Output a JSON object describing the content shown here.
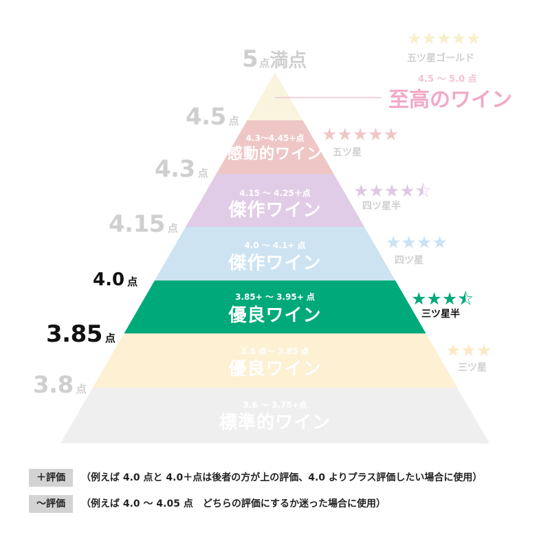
{
  "top": {
    "score_num": "5",
    "score_unit": "点",
    "score_tail": "満点",
    "stars": "★★★★★",
    "stars_label": "五ツ星ゴールド",
    "range": "4.5 ～ 5.0 点",
    "name": "至高のワイン"
  },
  "scores": [
    {
      "num": "4.5",
      "unit": "点"
    },
    {
      "num": "4.3",
      "unit": "点"
    },
    {
      "num": "4.15",
      "unit": "点"
    },
    {
      "num": "4.0",
      "unit": "点"
    },
    {
      "num": "3.85",
      "unit": "点"
    },
    {
      "num": "3.8",
      "unit": "点"
    }
  ],
  "tiers": [
    {
      "range": "4.3～4.45+点",
      "name": "感動的ワイン",
      "color": "#efc6c6",
      "stars": "★★★★★",
      "stars_label": "五ツ星",
      "star_color": "#efc6c6"
    },
    {
      "range": "4.15 ～ 4.25＋点",
      "name": "傑作ワイン",
      "color": "#e1cce7",
      "stars": "★★★★⯪",
      "stars_label": "四ツ星半",
      "star_color": "#ddc8e6"
    },
    {
      "range": "4.0 ～ 4.1+ 点",
      "name": "傑作ワイン",
      "color": "#cde3f2",
      "stars": "★★★★",
      "stars_label": "四ツ星",
      "star_color": "#cae2f3"
    },
    {
      "range": "3.85+ ～ 3.95+ 点",
      "name": "優良ワイン",
      "color": "#00a97a",
      "stars": "★★★⯪",
      "stars_label": "三ツ星半",
      "star_color": "#00a97a"
    },
    {
      "range": "3.8 点～ 3.85 点",
      "name": "優良ワイン",
      "color": "#fdf0d3",
      "stars": "★★★",
      "stars_label": "三ツ星",
      "star_color": "#fbe9c4"
    },
    {
      "range": "3.6 ～ 3.75+点",
      "name": "標準的ワイン",
      "color": "#efefef",
      "stars": "",
      "stars_label": "",
      "star_color": "#efefef"
    }
  ],
  "colors": {
    "apex": "#faf4df",
    "top_range": "#f3c2d6",
    "top_name": "#f2a8c8",
    "top_stars": "#f7efc8",
    "muted": "#cfcfcf",
    "dark": "#111111"
  },
  "legend": [
    {
      "tag": "＋評価",
      "text": "（例えば 4.0 点と 4.0＋点は後者の方が上の評価、4.0 よりプラス評価したい場合に使用）"
    },
    {
      "tag": "～評価",
      "text": "（例えば 4.0 ～ 4.05 点　どちらの評価にするか迷った場合に使用）"
    }
  ]
}
